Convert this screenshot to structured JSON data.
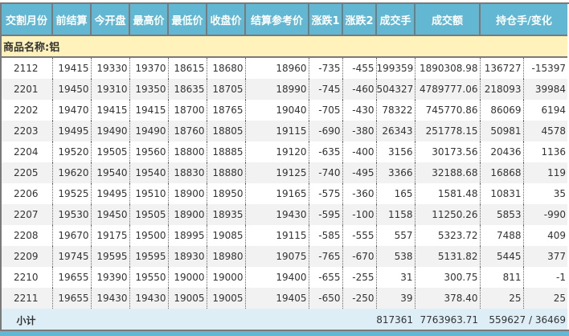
{
  "headers": [
    "交割月份",
    "前结算",
    "今开盘",
    "最高价",
    "最低价",
    "收盘价",
    "结算参考价",
    "涨跌1",
    "涨跌2",
    "成交手",
    "成交额",
    "持仓手/变化"
  ],
  "category_label": "商品名称:铝",
  "rows": [
    [
      "2112",
      "19415",
      "19330",
      "19370",
      "18615",
      "18680",
      "18960",
      "-735",
      "-455",
      "199359",
      "1890308.98",
      "136727",
      "-15397"
    ],
    [
      "2201",
      "19450",
      "19310",
      "19350",
      "18635",
      "18705",
      "18990",
      "-745",
      "-460",
      "504327",
      "4789777.06",
      "218093",
      "39984"
    ],
    [
      "2202",
      "19470",
      "19415",
      "19415",
      "18700",
      "18765",
      "19040",
      "-705",
      "-430",
      "78322",
      "745770.86",
      "86069",
      "6194"
    ],
    [
      "2203",
      "19495",
      "19490",
      "19490",
      "18760",
      "18805",
      "19115",
      "-690",
      "-380",
      "26343",
      "251778.15",
      "50981",
      "4578"
    ],
    [
      "2204",
      "19520",
      "19505",
      "19560",
      "18800",
      "18885",
      "19120",
      "-635",
      "-400",
      "3156",
      "30173.56",
      "20436",
      "1136"
    ],
    [
      "2205",
      "19620",
      "19540",
      "19540",
      "18830",
      "18880",
      "19125",
      "-740",
      "-495",
      "3366",
      "32188.68",
      "16868",
      "119"
    ],
    [
      "2206",
      "19525",
      "19495",
      "19510",
      "18900",
      "18950",
      "19165",
      "-575",
      "-360",
      "165",
      "1581.48",
      "10831",
      "35"
    ],
    [
      "2207",
      "19530",
      "19450",
      "19505",
      "18900",
      "18935",
      "19430",
      "-595",
      "-100",
      "1158",
      "11250.26",
      "5853",
      "-990"
    ],
    [
      "2208",
      "19670",
      "19175",
      "19500",
      "18995",
      "19085",
      "19115",
      "-585",
      "-555",
      "557",
      "5323.72",
      "7488",
      "409"
    ],
    [
      "2209",
      "19745",
      "19595",
      "19595",
      "18930",
      "18980",
      "19075",
      "-765",
      "-670",
      "538",
      "5131.82",
      "5445",
      "377"
    ],
    [
      "2210",
      "19655",
      "19390",
      "19550",
      "19000",
      "19000",
      "19400",
      "-655",
      "-255",
      "31",
      "300.75",
      "811",
      "-1"
    ],
    [
      "2211",
      "19655",
      "19430",
      "19430",
      "19005",
      "19005",
      "19405",
      "-650",
      "-250",
      "39",
      "378.40",
      "25",
      "25"
    ]
  ],
  "subtotal": {
    "label": "小计",
    "volume": "817361",
    "turnover": "7763963.71",
    "open_interest": "559627 / 36469"
  },
  "colors": {
    "header": "#62b8d3",
    "category": "#fff3bb",
    "alt_row": "#f2f2f2",
    "subtotal": "#ddeef6"
  }
}
